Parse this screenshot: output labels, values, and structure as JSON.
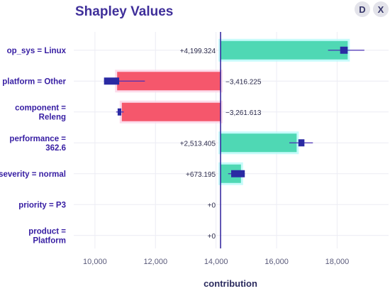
{
  "header": {
    "title": "Shapley Values",
    "buttons": [
      "D",
      "X"
    ]
  },
  "colors": {
    "positive": "#4fd8b4",
    "negative": "#f5576c",
    "positive_halo": "#b9faf9",
    "negative_halo": "#fbd3e6",
    "marker": "#2a2aa3",
    "marker_line": "#4a30b5",
    "axis_line": "#2d1f9b",
    "label": "#371ea3",
    "grid": "#ececf4",
    "tick": "#5a5a7a"
  },
  "chart_data": {
    "type": "bar",
    "orientation": "horizontal",
    "title": "Shapley Values",
    "xlabel": "contribution",
    "ylabel": "",
    "baseline": 14150,
    "xlim": [
      9300,
      19700
    ],
    "xticks": [
      10000,
      12000,
      14000,
      16000,
      18000
    ],
    "xtick_labels": [
      "10,000",
      "12,000",
      "14,000",
      "16,000",
      "18,000"
    ],
    "grid": true,
    "categories": [
      "op_sys = Linux",
      "platform = Other",
      "component = Releng",
      "performance = 362.6",
      "severity = normal",
      "priority = P3",
      "product = Platform"
    ],
    "category_lines": [
      [
        "op_sys = Linux"
      ],
      [
        "platform = Other"
      ],
      [
        "component =",
        "Releng"
      ],
      [
        "performance =",
        "362.6"
      ],
      [
        "severity = normal"
      ],
      [
        "priority = P3"
      ],
      [
        "product =",
        "Platform"
      ]
    ],
    "values": [
      4199.324,
      -3416.225,
      -3261.613,
      2513.405,
      673.195,
      0,
      0
    ],
    "value_labels": [
      "+4,199.324",
      "−3,416.225",
      "−3,261.613",
      "+2,513.405",
      "+673.195",
      "+0",
      "+0"
    ],
    "boxplot": [
      {
        "q1": 18100,
        "q3": 18350,
        "whisker_low": 17700,
        "whisker_high": 18900
      },
      {
        "q1": 10300,
        "q3": 10800,
        "whisker_low": 10300,
        "whisker_high": 11650
      },
      {
        "q1": 10750,
        "q3": 10870,
        "whisker_low": 10700,
        "whisker_high": 10950
      },
      {
        "q1": 16720,
        "q3": 16920,
        "whisker_low": 16420,
        "whisker_high": 17200
      },
      {
        "q1": 14500,
        "q3": 14950,
        "whisker_low": 14400,
        "whisker_high": 14950
      },
      null,
      null
    ]
  }
}
